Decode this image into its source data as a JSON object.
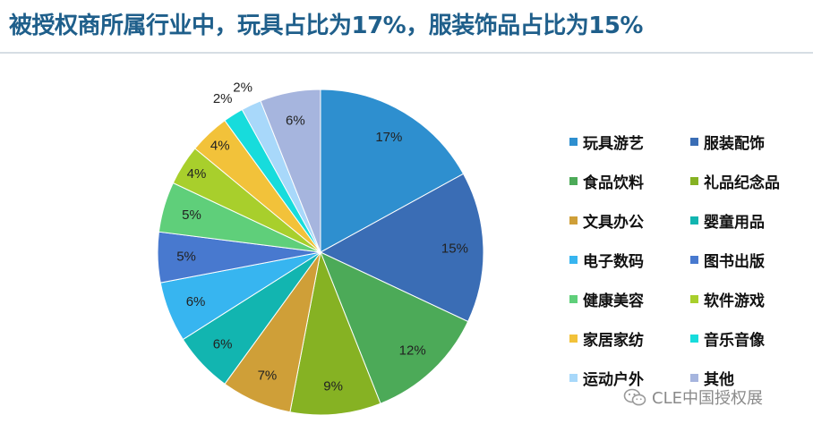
{
  "title": "被授权商所属行业中，玩具占比为17%，服装饰品占比为15%",
  "watermark": "CLE中国授权展",
  "chart_data": {
    "type": "pie",
    "start": "12 o'clock",
    "direction": "clockwise",
    "slices": [
      {
        "name": "玩具游艺",
        "value": 17,
        "label": "17%",
        "color": "#2e8fcf"
      },
      {
        "name": "服装配饰",
        "value": 15,
        "label": "15%",
        "color": "#3a6db5"
      },
      {
        "name": "食品饮料",
        "value": 12,
        "label": "12%",
        "color": "#4caa58"
      },
      {
        "name": "礼品纪念品",
        "value": 9,
        "label": "9%",
        "color": "#86b223"
      },
      {
        "name": "文具办公",
        "value": 7,
        "label": "7%",
        "color": "#cf9f38"
      },
      {
        "name": "婴童用品",
        "value": 6,
        "label": "6%",
        "color": "#12b5b0"
      },
      {
        "name": "电子数码",
        "value": 6,
        "label": "6%",
        "color": "#37b5f0"
      },
      {
        "name": "图书出版",
        "value": 5,
        "label": "5%",
        "color": "#4879cf"
      },
      {
        "name": "健康美容",
        "value": 5,
        "label": "5%",
        "color": "#5fcf7a"
      },
      {
        "name": "软件游戏",
        "value": 4,
        "label": "4%",
        "color": "#a8cf2c"
      },
      {
        "name": "家居家纺",
        "value": 4,
        "label": "4%",
        "color": "#f2c23a"
      },
      {
        "name": "音乐音像",
        "value": 2,
        "label": "2%",
        "color": "#17dcdc"
      },
      {
        "name": "运动户外",
        "value": 2,
        "label": "2%",
        "color": "#a8d8fa"
      },
      {
        "name": "其他",
        "value": 6,
        "label": "6%",
        "color": "#a6b5de"
      }
    ],
    "legend_position": "right"
  }
}
